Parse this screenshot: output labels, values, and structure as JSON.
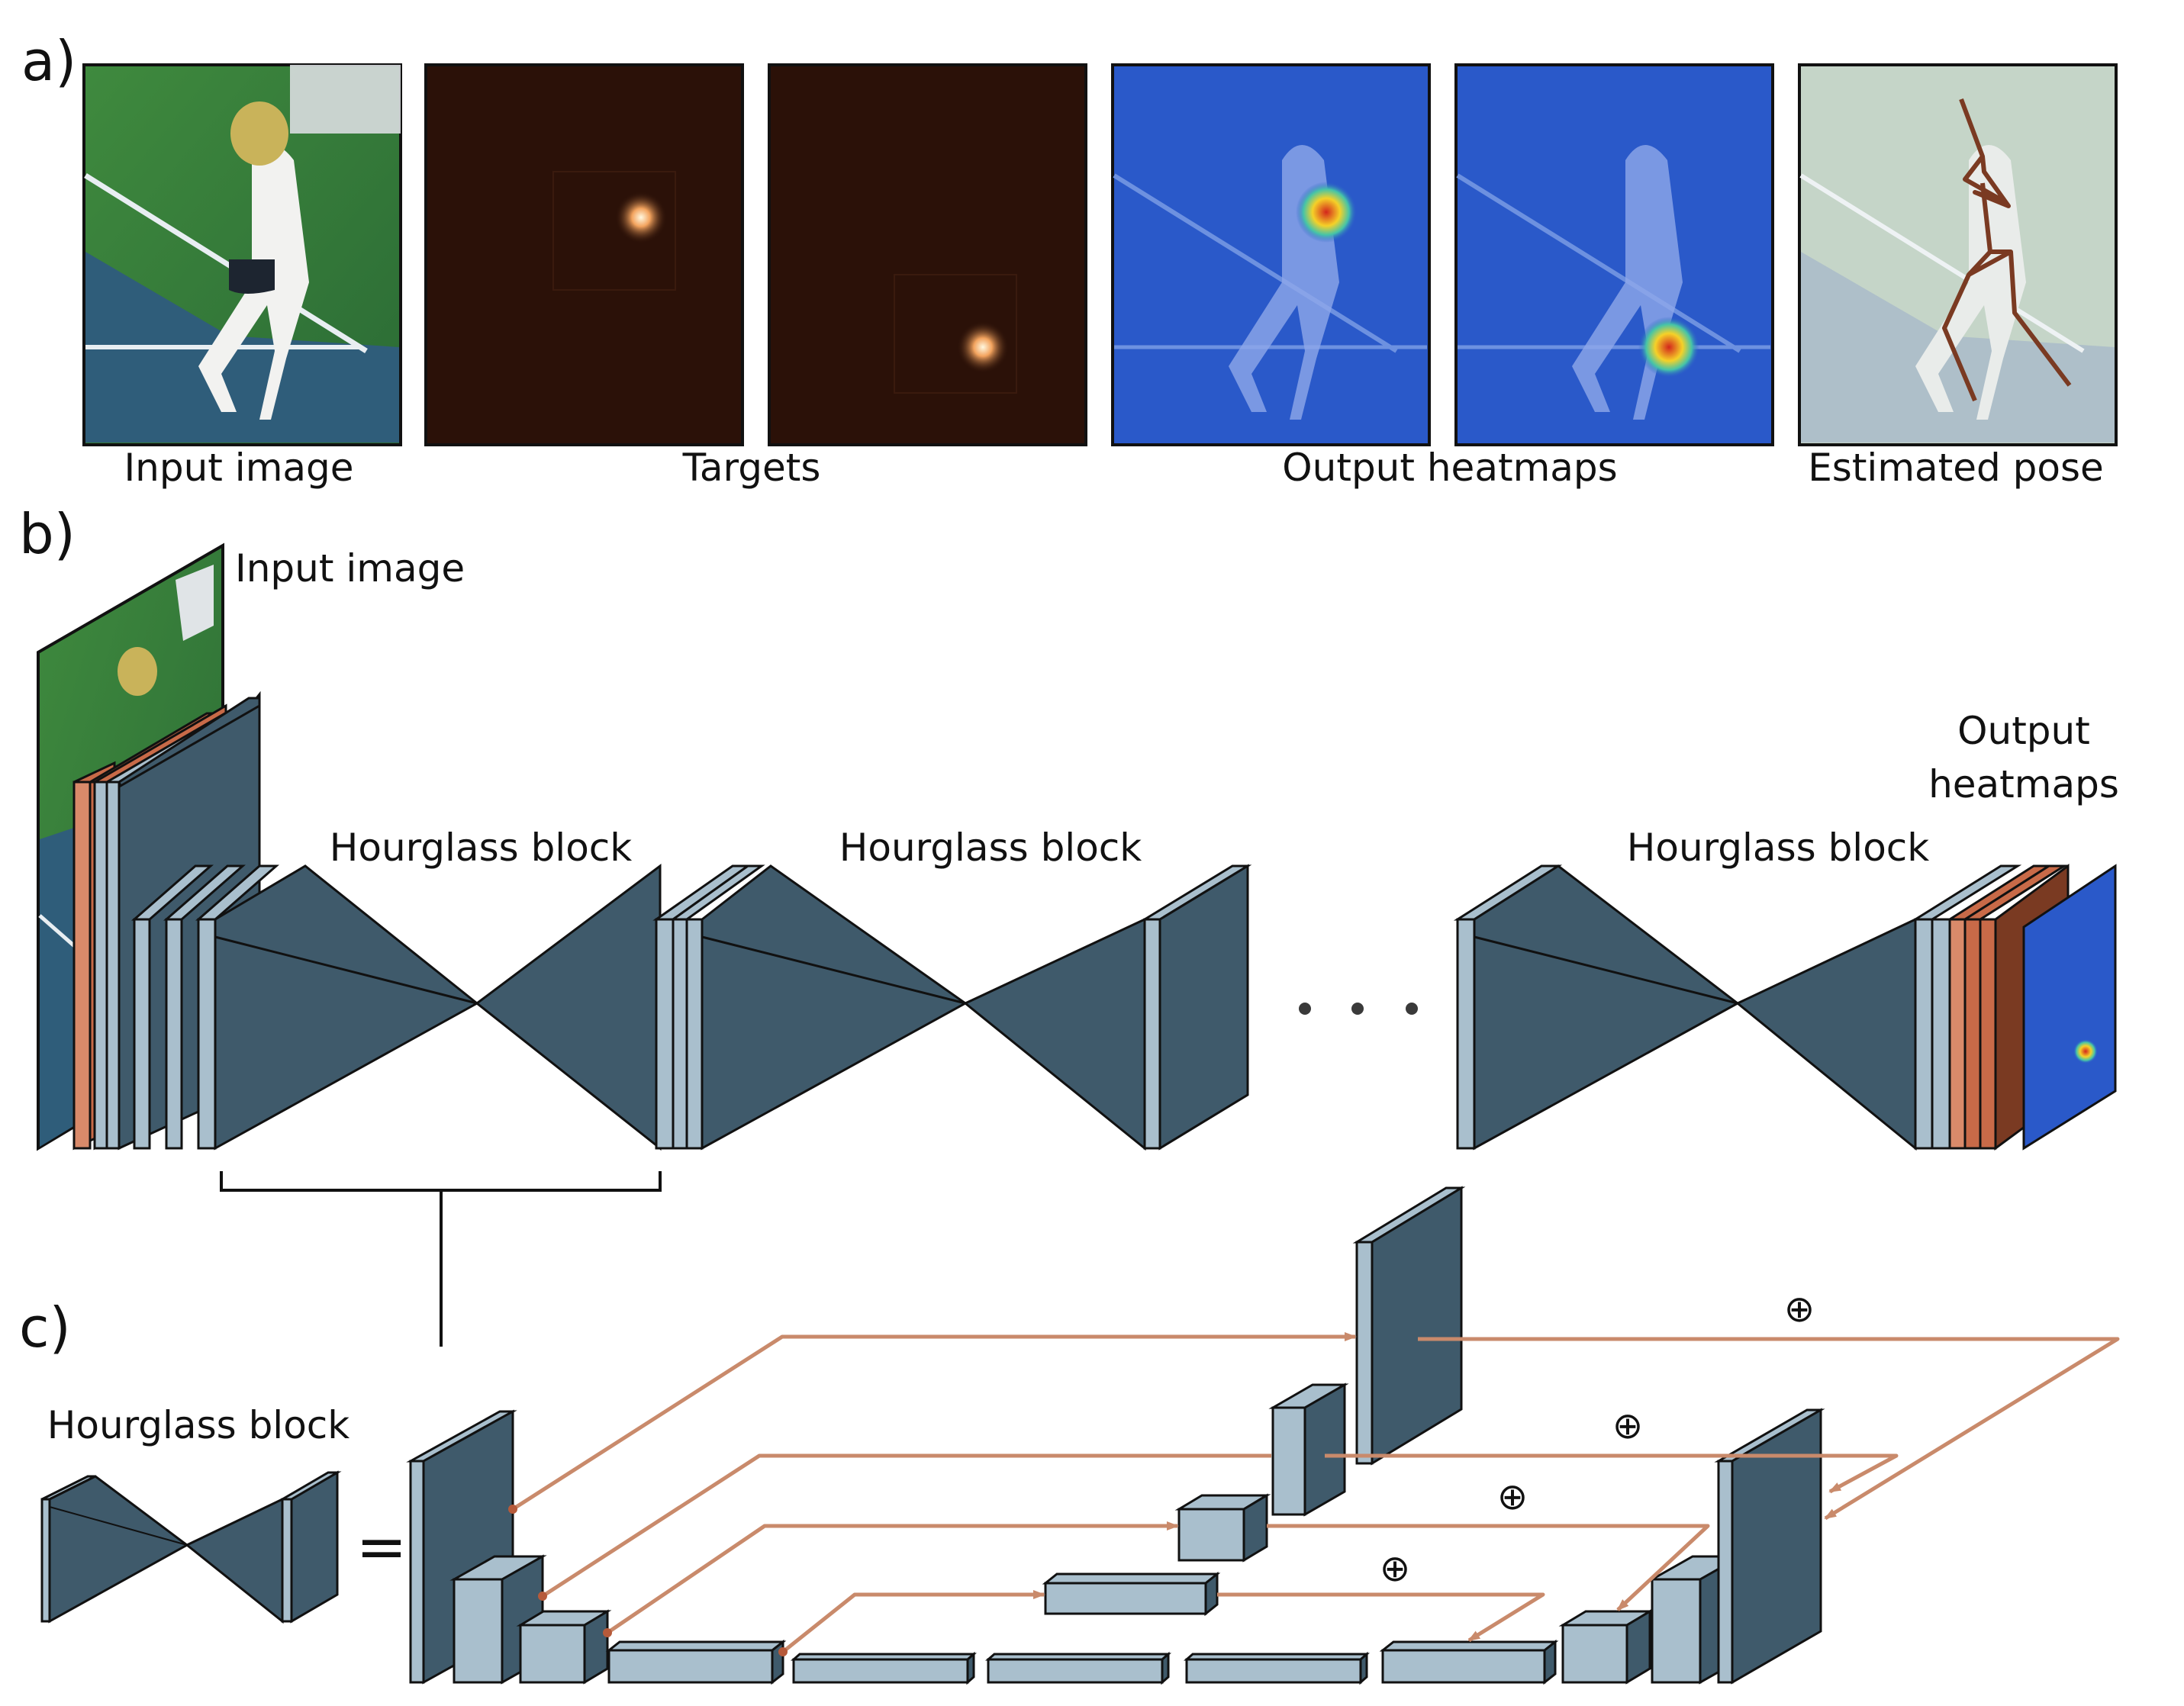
{
  "panels": {
    "a": "a)",
    "b": "b)",
    "c": "c)"
  },
  "panel_a": {
    "input_image": "Input image",
    "targets": "Targets",
    "output_heatmaps": "Output heatmaps",
    "estimated_pose": "Estimated pose"
  },
  "panel_b": {
    "input_image": "Input image",
    "hourglass_block_1": "Hourglass block",
    "hourglass_block_2": "Hourglass block",
    "hourglass_block_3": "Hourglass block",
    "output_line1": "Output",
    "output_line2": "heatmaps"
  },
  "panel_c": {
    "hourglass_block": "Hourglass block",
    "equals": "=",
    "plus_symbol": "⊕"
  },
  "colors": {
    "slab_dark": "#3f5a6b",
    "slab_light": "#a9bfcd",
    "orange": "#c86a48",
    "brown": "#7a3a22",
    "arrow": "#c98a6b",
    "heatmap_bg": "#2a59c9"
  }
}
